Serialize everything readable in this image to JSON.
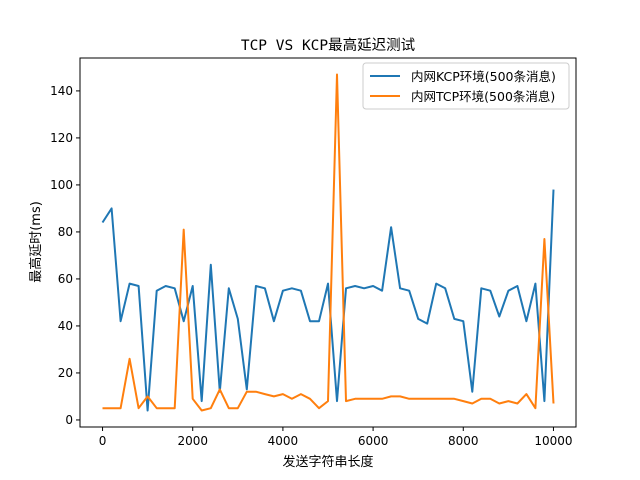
{
  "chart_data": {
    "type": "line",
    "title": "TCP VS KCP最高延迟测试",
    "xlabel": "发送字符串长度",
    "ylabel": "最高延时(ms)",
    "xlim": [
      -500,
      10500
    ],
    "ylim": [
      -3,
      154
    ],
    "xticks": [
      0,
      2000,
      4000,
      6000,
      8000,
      10000
    ],
    "xtick_labels": [
      "0",
      "2000",
      "4000",
      "6000",
      "8000",
      "10000"
    ],
    "yticks": [
      0,
      20,
      40,
      60,
      80,
      100,
      120,
      140
    ],
    "ytick_labels": [
      "0",
      "20",
      "40",
      "60",
      "80",
      "100",
      "120",
      "140"
    ],
    "grid": false,
    "legend_position": "upper right",
    "x": [
      0,
      200,
      400,
      600,
      800,
      1000,
      1200,
      1400,
      1600,
      1800,
      2000,
      2200,
      2400,
      2600,
      2800,
      3000,
      3200,
      3400,
      3600,
      3800,
      4000,
      4200,
      4400,
      4600,
      4800,
      5000,
      5200,
      5400,
      5600,
      5800,
      6000,
      6200,
      6400,
      6600,
      6800,
      7000,
      7200,
      7400,
      7600,
      7800,
      8000,
      8200,
      8400,
      8600,
      8800,
      9000,
      9200,
      9400,
      9600,
      9800,
      10000
    ],
    "series": [
      {
        "name": "内网KCP环境(500条消息)",
        "color": "#1f77b4",
        "values": [
          84,
          90,
          42,
          58,
          57,
          4,
          55,
          57,
          56,
          42,
          57,
          8,
          66,
          12,
          56,
          43,
          13,
          57,
          56,
          42,
          55,
          56,
          55,
          42,
          42,
          58,
          8,
          56,
          57,
          56,
          57,
          55,
          82,
          56,
          55,
          43,
          41,
          58,
          56,
          43,
          42,
          12,
          56,
          55,
          44,
          55,
          57,
          42,
          58,
          8,
          98
        ]
      },
      {
        "name": "内网TCP环境(500条消息)",
        "color": "#ff7f0e",
        "values": [
          5,
          5,
          5,
          26,
          5,
          10,
          5,
          5,
          5,
          81,
          9,
          4,
          5,
          13,
          5,
          5,
          12,
          12,
          11,
          10,
          11,
          9,
          11,
          9,
          5,
          8,
          147,
          8,
          9,
          9,
          9,
          9,
          10,
          10,
          9,
          9,
          9,
          9,
          9,
          9,
          8,
          7,
          9,
          9,
          7,
          8,
          7,
          11,
          5,
          77,
          7
        ]
      }
    ]
  }
}
